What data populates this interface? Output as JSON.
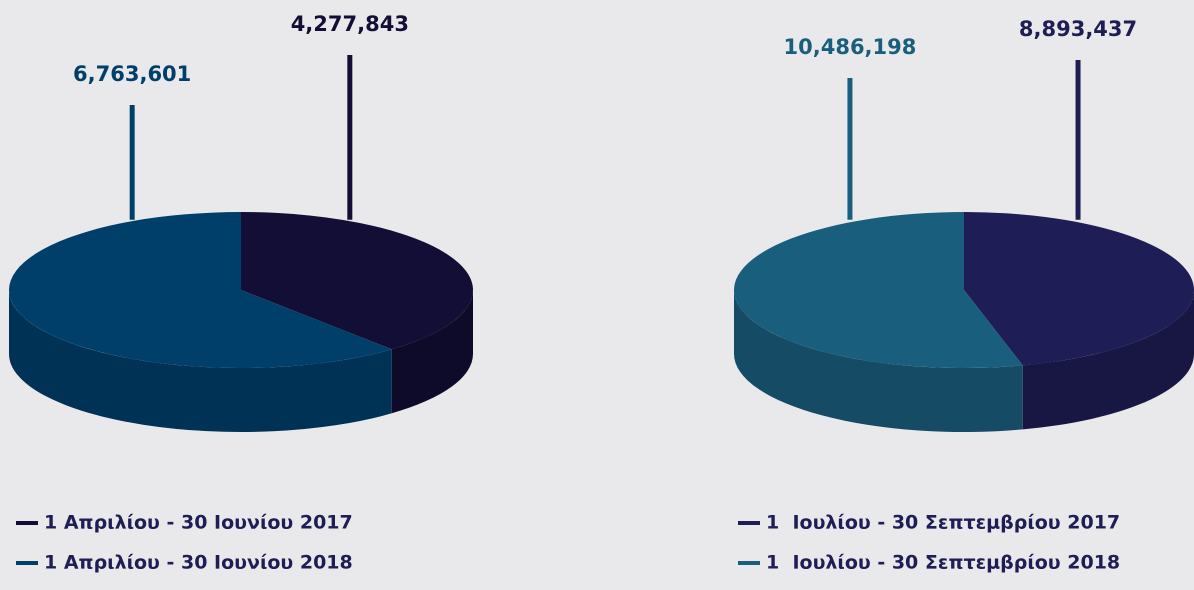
{
  "chart_data": [
    {
      "type": "pie",
      "categories": [
        "1 Απριλίου - 30 Ιουνίου 2017",
        "1 Απριλίου - 30 Ιουνίου 2018"
      ],
      "values": [
        4277843,
        6763601
      ],
      "value_labels": [
        "4,277,843",
        "6,763,601"
      ],
      "colors": [
        "#120e35",
        "#003f6a"
      ]
    },
    {
      "type": "pie",
      "categories": [
        "1  Ιουλίου - 30 Σεπτεμβρίου 2017",
        "1  Ιουλίου - 30 Σεπτεμβρίου 2018"
      ],
      "values": [
        8893437,
        10486198
      ],
      "value_labels": [
        "8,893,437",
        "10,486,198"
      ],
      "colors": [
        "#1e1d55",
        "#1a5e7e"
      ]
    }
  ]
}
